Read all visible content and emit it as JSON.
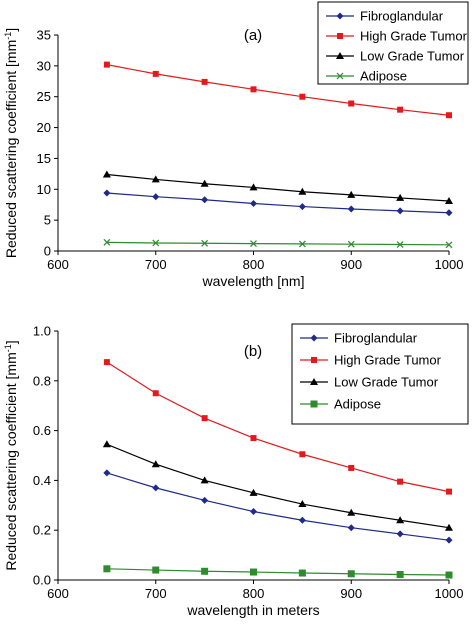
{
  "chart_data": [
    {
      "type": "line",
      "panel_label": "(a)",
      "xlabel": "wavelength [nm]",
      "ylabel_main": "Reduced scattering coefficient [mm",
      "ylabel_sup": "-1",
      "ylabel_end": "]",
      "xlim": [
        600,
        1000
      ],
      "ylim": [
        0,
        35
      ],
      "xticks": [
        600,
        700,
        800,
        900,
        1000
      ],
      "yticks": [
        0,
        5,
        10,
        15,
        20,
        25,
        30,
        35
      ],
      "ytick_decimals": 0,
      "grid": false,
      "legend_position": "top-right",
      "x": [
        650,
        700,
        750,
        800,
        850,
        900,
        950,
        1000
      ],
      "series": [
        {
          "name": "Fibroglandular",
          "color": "#1f2a8a",
          "marker": "diamond",
          "values": [
            9.4,
            8.8,
            8.3,
            7.7,
            7.2,
            6.8,
            6.5,
            6.2
          ]
        },
        {
          "name": "High Grade Tumor",
          "color": "#e31a1c",
          "marker": "square",
          "values": [
            30.2,
            28.7,
            27.4,
            26.2,
            25.0,
            23.9,
            22.9,
            22.0
          ]
        },
        {
          "name": "Low Grade Tumor",
          "color": "#000000",
          "marker": "triangle",
          "values": [
            12.4,
            11.6,
            10.9,
            10.3,
            9.6,
            9.1,
            8.6,
            8.1
          ]
        },
        {
          "name": "Adipose",
          "color": "#2e8b2e",
          "marker": "x",
          "values": [
            1.4,
            1.3,
            1.25,
            1.2,
            1.15,
            1.1,
            1.05,
            1.0
          ]
        }
      ]
    },
    {
      "type": "line",
      "panel_label": "(b)",
      "xlabel": "wavelength in meters",
      "ylabel_main": "Reduced scattering coefficient [mm",
      "ylabel_sup": "-1",
      "ylabel_end": "]",
      "xlim": [
        600,
        1000
      ],
      "ylim": [
        0,
        1.0
      ],
      "xticks": [
        600,
        700,
        800,
        900,
        1000
      ],
      "yticks": [
        0.0,
        0.2,
        0.4,
        0.6,
        0.8,
        1.0
      ],
      "ytick_decimals": 1,
      "grid": false,
      "legend_position": "top-right",
      "x": [
        650,
        700,
        750,
        800,
        850,
        900,
        950,
        1000
      ],
      "series": [
        {
          "name": "Fibroglandular",
          "color": "#1f2a8a",
          "marker": "diamond",
          "values": [
            0.43,
            0.37,
            0.32,
            0.275,
            0.24,
            0.21,
            0.185,
            0.16
          ]
        },
        {
          "name": "High Grade Tumor",
          "color": "#e31a1c",
          "marker": "square",
          "values": [
            0.875,
            0.75,
            0.65,
            0.57,
            0.505,
            0.45,
            0.395,
            0.355
          ]
        },
        {
          "name": "Low Grade Tumor",
          "color": "#000000",
          "marker": "triangle",
          "values": [
            0.545,
            0.465,
            0.4,
            0.35,
            0.305,
            0.27,
            0.24,
            0.21
          ]
        },
        {
          "name": "Adipose",
          "color": "#2e8b2e",
          "marker": "bigsquare",
          "values": [
            0.045,
            0.04,
            0.035,
            0.032,
            0.028,
            0.025,
            0.022,
            0.02
          ]
        }
      ]
    }
  ]
}
